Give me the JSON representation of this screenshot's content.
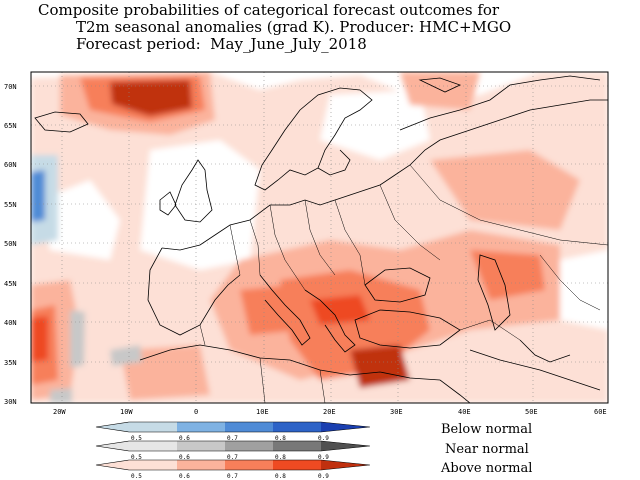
{
  "title": {
    "line1": "Composite probabilities of categorical forecast outcomes for",
    "line2": "T2m seasonal anomalies (grad K). Producer: HMC+MGO",
    "line3": "Forecast period:  May_June_July_2018"
  },
  "map": {
    "lat_labels": [
      "70N",
      "65N",
      "60N",
      "55N",
      "50N",
      "45N",
      "40N",
      "35N",
      "30N"
    ],
    "lon_labels": [
      "20W",
      "10W",
      "0",
      "10E",
      "20E",
      "30E",
      "40E",
      "50E",
      "60E"
    ]
  },
  "legend": {
    "rows": [
      {
        "label": "Below normal",
        "ticks": [
          "0.5",
          "0.6",
          "0.7",
          "0.8",
          "0.9"
        ],
        "colors": [
          "#c6dbe6",
          "#7fb2e3",
          "#4f8bd6",
          "#2d63c7",
          "#1a3fb0"
        ]
      },
      {
        "label": "Near normal",
        "ticks": [
          "0.5",
          "0.6",
          "0.7",
          "0.8",
          "0.9"
        ],
        "colors": [
          "#e6e6e6",
          "#c8c8c8",
          "#a0a0a0",
          "#787878",
          "#505050"
        ]
      },
      {
        "label": "Above normal",
        "ticks": [
          "0.5",
          "0.6",
          "0.7",
          "0.8",
          "0.9"
        ],
        "colors": [
          "#fde0d6",
          "#fbb39c",
          "#f77f5a",
          "#ee4a22",
          "#c0300e"
        ]
      }
    ]
  }
}
